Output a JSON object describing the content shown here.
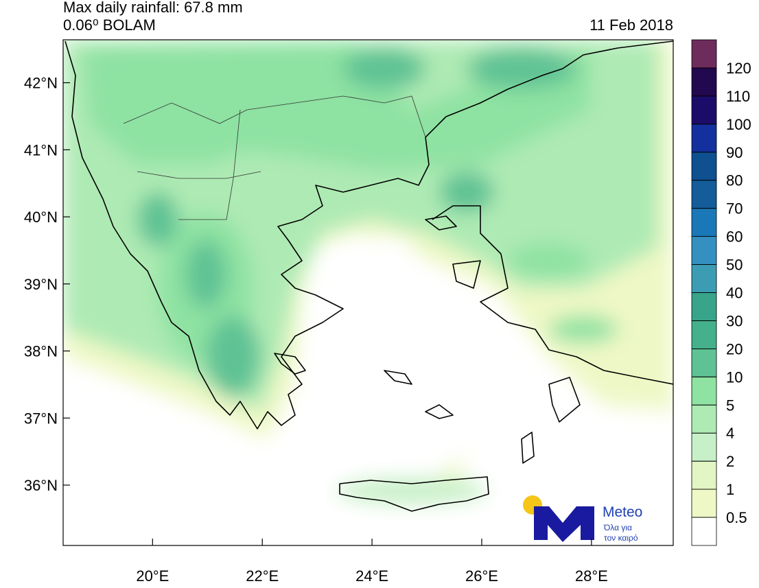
{
  "header": {
    "title": "Max daily rainfall: 67.8 mm",
    "model": "0.06⁰ BOLAM",
    "date": "11 Feb 2018"
  },
  "map": {
    "lonlim": [
      18.37,
      29.49
    ],
    "latlim": [
      35.1,
      42.64
    ],
    "lat_ticks": [
      {
        "value": 42,
        "label": "42°N"
      },
      {
        "value": 41,
        "label": "41°N"
      },
      {
        "value": 40,
        "label": "40°N"
      },
      {
        "value": 39,
        "label": "39°N"
      },
      {
        "value": 38,
        "label": "38°N"
      },
      {
        "value": 37,
        "label": "37°N"
      },
      {
        "value": 36,
        "label": "36°N"
      }
    ],
    "lon_ticks": [
      {
        "value": 20,
        "label": "20°E"
      },
      {
        "value": 22,
        "label": "22°E"
      },
      {
        "value": 24,
        "label": "24°E"
      },
      {
        "value": 26,
        "label": "26°E"
      },
      {
        "value": 28,
        "label": "28°E"
      }
    ]
  },
  "colorbar": {
    "levels": [
      0.5,
      1,
      2,
      4,
      5,
      10,
      20,
      30,
      40,
      50,
      60,
      70,
      80,
      90,
      100,
      110,
      120
    ],
    "colors": [
      "#ffffff",
      "#eef8c6",
      "#e2f5c4",
      "#c8f0c8",
      "#aeeab4",
      "#8ee2a2",
      "#5ec294",
      "#44b08c",
      "#38a48a",
      "#3c9cb4",
      "#3490c0",
      "#1a78b8",
      "#145c9a",
      "#0e5090",
      "#14309e",
      "#1c0c6a",
      "#22084e",
      "#6e2c5c"
    ]
  },
  "logo": {
    "name": "Meteo",
    "line1": "Όλα για",
    "line2": "τον καιρό"
  }
}
